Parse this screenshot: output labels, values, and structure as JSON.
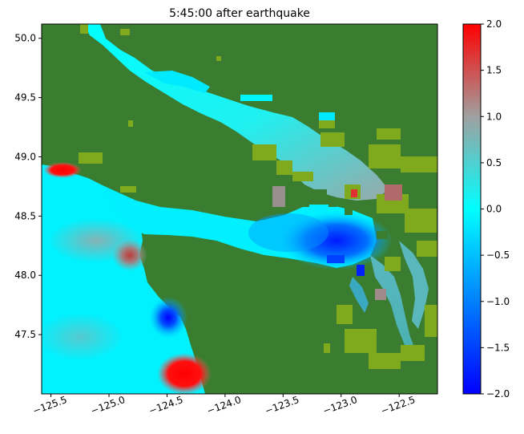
{
  "chart_data": {
    "type": "heatmap",
    "title": "5:45:00 after earthquake",
    "xlabel": "",
    "ylabel": "",
    "xlim": [
      -125.58,
      -122.17
    ],
    "ylim": [
      47.0,
      50.12
    ],
    "x_ticks": [
      -125.5,
      -125.0,
      -124.5,
      -124.0,
      -123.5,
      -123.0,
      -122.5
    ],
    "x_tick_labels": [
      "−125.5",
      "−125.0",
      "−124.5",
      "−124.0",
      "−123.5",
      "−123.0",
      "−122.5"
    ],
    "y_ticks": [
      47.5,
      48.0,
      48.5,
      49.0,
      49.5,
      50.0
    ],
    "y_tick_labels": [
      "47.5",
      "48.0",
      "48.5",
      "49.0",
      "49.5",
      "50.0"
    ],
    "x_tick_rotation_deg": 20,
    "colorbar": {
      "range": [
        -2.0,
        2.0
      ],
      "ticks": [
        -2.0,
        -1.5,
        -1.0,
        -0.5,
        0.0,
        0.5,
        1.0,
        1.5,
        2.0
      ],
      "tick_labels": [
        "−2.0",
        "−1.5",
        "−1.0",
        "−0.5",
        "0.0",
        "0.5",
        "1.0",
        "1.5",
        "2.0"
      ],
      "colormap_stops": [
        {
          "value": -2.0,
          "color": "#0000ff"
        },
        {
          "value": -1.0,
          "color": "#0080ff"
        },
        {
          "value": 0.0,
          "color": "#00ffff"
        },
        {
          "value": 1.0,
          "color": "#a0a0a0"
        },
        {
          "value": 2.0,
          "color": "#ff0000"
        }
      ]
    },
    "land_color": "#3a7d31",
    "shallow_color": "#7faa1e",
    "surface_regions": [
      {
        "name": "Pacific Ocean",
        "value": 0.0
      },
      {
        "name": "Northern Strait of Georgia",
        "value": 0.05
      },
      {
        "name": "Southern Strait of Georgia",
        "value": 0.6
      },
      {
        "name": "Strait of Juan de Fuca (west)",
        "value": 0.0
      },
      {
        "name": "Strait of Juan de Fuca (east)",
        "value": -1.0
      },
      {
        "name": "Puget Sound",
        "value": 0.55
      },
      {
        "name": "Offshore high near 48.2N",
        "value": 1.6
      },
      {
        "name": "Offshore low near 47.6N",
        "value": -2.0
      },
      {
        "name": "Coastal high near 47.2N",
        "value": 2.0
      },
      {
        "name": "Coastal high near 48.9N",
        "value": 2.0
      }
    ]
  }
}
